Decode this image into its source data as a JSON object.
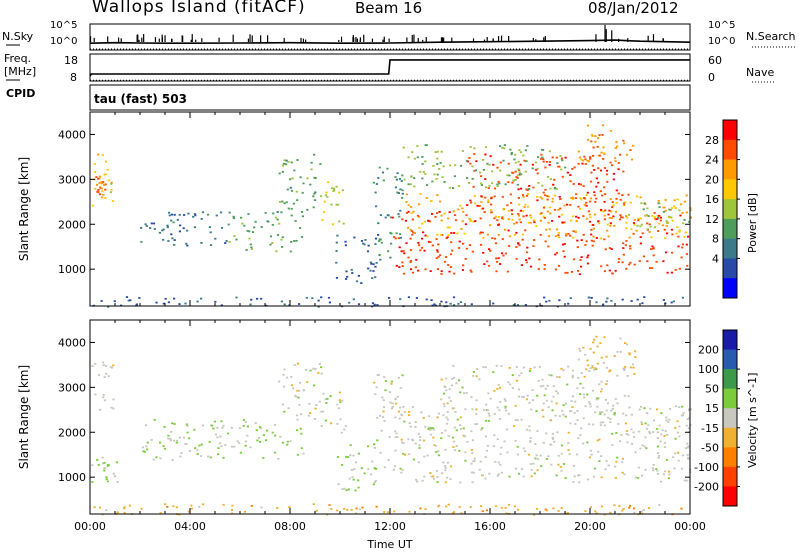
{
  "header": {
    "station": "Wallops Island (fitACF)",
    "beam": "Beam 16",
    "date": "08/Jan/2012"
  },
  "strip_labels": {
    "nsky": "N.Sky",
    "nsearch": "N.Search",
    "freq_line1": "Freq.",
    "freq_line2": "[MHz]",
    "nave": "Nave",
    "cpid": "CPID",
    "cpid_value": "tau (fast) 503"
  },
  "strip_ticks": {
    "noise_top_left": "10^5",
    "noise_bottom_left": "10^0",
    "noise_top_right": "10^5",
    "noise_bottom_right": "10^0",
    "freq_top": "18",
    "freq_bottom": "8",
    "nave_top": "60",
    "nave_bottom": "0"
  },
  "power_colorbar": {
    "label": "Power [dB]",
    "ticks": [
      "28",
      "24",
      "20",
      "16",
      "12",
      "8",
      "4"
    ],
    "colors": [
      "#ff0000",
      "#ff4a00",
      "#ff9a00",
      "#ffc800",
      "#9fc53c",
      "#4e9d5a",
      "#3a7a8a",
      "#2a4aa8",
      "#0000ff"
    ]
  },
  "velocity_colorbar": {
    "label": "Velocity [m s^-1]",
    "ticks": [
      "200",
      "100",
      "50",
      "15",
      "-15",
      "-50",
      "-100",
      "-200"
    ],
    "colors": [
      "#1a1aa8",
      "#2a5ab0",
      "#3a9a4a",
      "#7acc3a",
      "#c8c8c0",
      "#f0b030",
      "#ff8000",
      "#ff4000",
      "#ff0000"
    ]
  },
  "chart_data": [
    {
      "type": "line",
      "name": "noise",
      "series": [
        {
          "name": "N.Sky",
          "x": [
            0,
            1,
            2,
            3,
            4,
            6,
            8,
            10,
            12,
            14,
            16,
            18,
            20,
            21,
            22,
            23,
            24
          ],
          "y": [
            1.3,
            1.4,
            1.35,
            1.3,
            1.3,
            1.35,
            1.4,
            1.3,
            1.35,
            1.5,
            1.6,
            1.7,
            1.8,
            1.9,
            1.7,
            1.6,
            1.5
          ]
        },
        {
          "name": "N.Search",
          "x": [
            0,
            4,
            8,
            12,
            16,
            20,
            24
          ],
          "y": [
            0.2,
            0.2,
            0.2,
            0.2,
            0.2,
            0.2,
            0.2
          ]
        }
      ],
      "ylim": [
        0,
        5
      ]
    },
    {
      "type": "line",
      "name": "frequency",
      "series": [
        {
          "name": "Freq.",
          "x": [
            0,
            0.05,
            11.95,
            12.0,
            24
          ],
          "y": [
            9.8,
            10.6,
            10.6,
            15.8,
            15.8
          ]
        },
        {
          "name": "Nave",
          "x": [
            0,
            24
          ],
          "y": [
            8.3,
            8.3
          ]
        }
      ],
      "ylim": [
        8,
        18
      ]
    },
    {
      "type": "heatmap",
      "name": "power",
      "xlabel": "",
      "ylabel": "Slant Range [km]",
      "xlim": [
        0,
        24
      ],
      "ylim": [
        180,
        4500
      ],
      "yticks": [
        1000,
        2000,
        3000,
        4000
      ],
      "clim": [
        0,
        30
      ],
      "regions": [
        {
          "x0": 0.0,
          "x1": 0.9,
          "y0": 2400,
          "y1": 3600,
          "v": 18
        },
        {
          "x0": 0.2,
          "x1": 0.6,
          "y0": 2600,
          "y1": 3100,
          "v": 24
        },
        {
          "x0": 2.0,
          "x1": 5.5,
          "y0": 1500,
          "y1": 2300,
          "v": 8
        },
        {
          "x0": 5.5,
          "x1": 8.5,
          "y0": 1400,
          "y1": 2300,
          "v": 12
        },
        {
          "x0": 7.5,
          "x1": 9.3,
          "y0": 2300,
          "y1": 3600,
          "v": 12
        },
        {
          "x0": 9.2,
          "x1": 10.2,
          "y0": 2000,
          "y1": 3000,
          "v": 16
        },
        {
          "x0": 9.8,
          "x1": 11.5,
          "y0": 700,
          "y1": 1800,
          "v": 6
        },
        {
          "x0": 11.3,
          "x1": 12.5,
          "y0": 1200,
          "y1": 3300,
          "v": 10
        },
        {
          "x0": 12.1,
          "x1": 24.0,
          "y0": 900,
          "y1": 1900,
          "v": 26
        },
        {
          "x0": 12.6,
          "x1": 24.0,
          "y0": 1700,
          "y1": 2700,
          "v": 20
        },
        {
          "x0": 12.0,
          "x1": 24.0,
          "y0": 2000,
          "y1": 2300,
          "v": 27
        },
        {
          "x0": 15.0,
          "x1": 21.5,
          "y0": 2300,
          "y1": 3600,
          "v": 26
        },
        {
          "x0": 12.5,
          "x1": 19.0,
          "y0": 2800,
          "y1": 3800,
          "v": 14
        },
        {
          "x0": 19.5,
          "x1": 21.8,
          "y0": 3400,
          "y1": 4300,
          "v": 22
        },
        {
          "x0": 21.5,
          "x1": 24.0,
          "y0": 1900,
          "y1": 2500,
          "v": 14
        },
        {
          "x0": 0.0,
          "x1": 24.0,
          "y0": 180,
          "y1": 400,
          "v": 6
        }
      ]
    },
    {
      "type": "heatmap",
      "name": "velocity",
      "xlabel": "Time UT",
      "ylabel": "Slant Range [km]",
      "xlim": [
        0,
        24
      ],
      "ylim": [
        180,
        4500
      ],
      "xticks": [
        "00:00",
        "04:00",
        "08:00",
        "12:00",
        "16:00",
        "20:00",
        "00:00"
      ],
      "yticks": [
        1000,
        2000,
        3000,
        4000
      ],
      "clim": [
        -250,
        250
      ],
      "regions": [
        {
          "x0": 0.0,
          "x1": 0.9,
          "y0": 2400,
          "y1": 3600,
          "v": 0
        },
        {
          "x0": 0.0,
          "x1": 1.2,
          "y0": 900,
          "y1": 1500,
          "v": 40
        },
        {
          "x0": 2.0,
          "x1": 8.5,
          "y0": 1400,
          "y1": 2300,
          "v": 30
        },
        {
          "x0": 7.5,
          "x1": 9.3,
          "y0": 2300,
          "y1": 3600,
          "v": 0
        },
        {
          "x0": 9.2,
          "x1": 10.2,
          "y0": 2000,
          "y1": 3000,
          "v": 0
        },
        {
          "x0": 9.8,
          "x1": 11.5,
          "y0": 700,
          "y1": 1800,
          "v": 40
        },
        {
          "x0": 11.3,
          "x1": 12.5,
          "y0": 1200,
          "y1": 3300,
          "v": 0
        },
        {
          "x0": 12.1,
          "x1": 24.0,
          "y0": 900,
          "y1": 2600,
          "v": 0
        },
        {
          "x0": 14.0,
          "x1": 21.5,
          "y0": 2400,
          "y1": 3500,
          "v": 0
        },
        {
          "x0": 19.5,
          "x1": 21.8,
          "y0": 3300,
          "y1": 4300,
          "v": -40
        },
        {
          "x0": 21.5,
          "x1": 24.0,
          "y0": 1900,
          "y1": 2600,
          "v": 0
        },
        {
          "x0": 0.0,
          "x1": 24.0,
          "y0": 180,
          "y1": 420,
          "v": -60
        }
      ]
    }
  ]
}
